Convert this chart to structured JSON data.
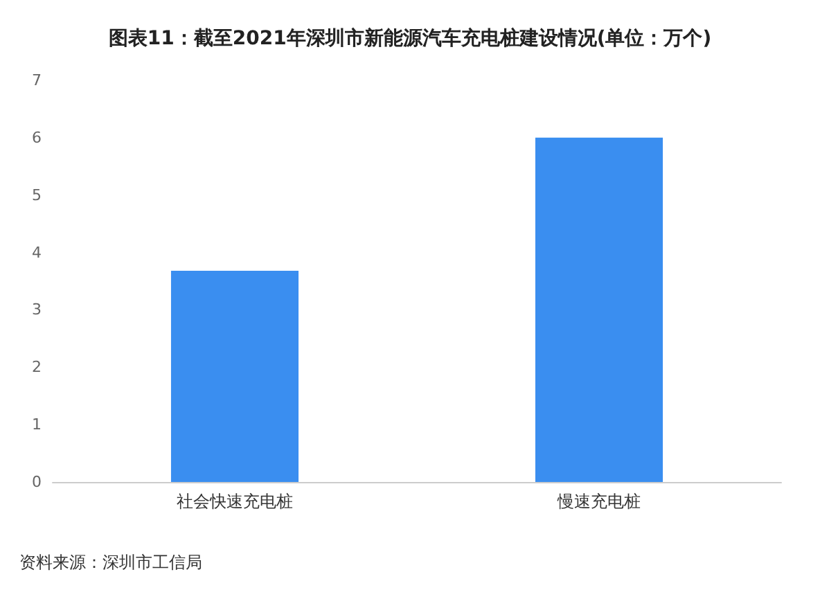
{
  "chart_data": {
    "type": "bar",
    "title": "图表11：截至2021年深圳市新能源汽车充电桩建设情况(单位：万个)",
    "categories": [
      "社会快速充电桩",
      "慢速充电桩"
    ],
    "values": [
      3.68,
      6.0
    ],
    "color": "#3a8ef0",
    "ylim": [
      0,
      7
    ],
    "yticks": [
      0,
      1,
      2,
      3,
      4,
      5,
      6,
      7
    ],
    "grid": false,
    "annotations": [
      "资料来源：深圳市工信局"
    ]
  }
}
